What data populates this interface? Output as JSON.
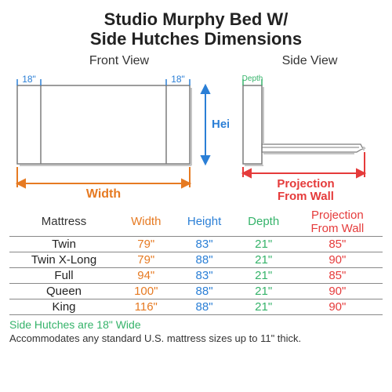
{
  "title_line1": "Studio Murphy Bed W/",
  "title_line2": "Side Hutches Dimensions",
  "front_view_label": "Front View",
  "side_view_label": "Side View",
  "colors": {
    "width": "#e67a22",
    "height": "#2b7fd6",
    "depth": "#35b36a",
    "proj": "#e53b3b",
    "schematic_line": "#7c7c7c",
    "schematic_shadow": "#c6c6c6",
    "text": "#222222",
    "tick": "#2b7fd6"
  },
  "front_labels": {
    "hutch_left": "18\"",
    "hutch_right": "18\"",
    "height": "Height",
    "width": "Width"
  },
  "side_labels": {
    "depth": "Depth",
    "proj_line1": "Projection",
    "proj_line2": "From Wall"
  },
  "table": {
    "headers": {
      "mattress": "Mattress",
      "width": "Width",
      "height": "Height",
      "depth": "Depth",
      "proj_line1": "Projection",
      "proj_line2": "From Wall"
    },
    "rows": [
      {
        "m": "Twin",
        "w": "79\"",
        "h": "83\"",
        "d": "21\"",
        "p": "85\""
      },
      {
        "m": "Twin X-Long",
        "w": "79\"",
        "h": "88\"",
        "d": "21\"",
        "p": "90\""
      },
      {
        "m": "Full",
        "w": "94\"",
        "h": "83\"",
        "d": "21\"",
        "p": "85\""
      },
      {
        "m": "Queen",
        "w": "100\"",
        "h": "88\"",
        "d": "21\"",
        "p": "90\""
      },
      {
        "m": "King",
        "w": "116\"",
        "h": "88\"",
        "d": "21\"",
        "p": "90\""
      }
    ]
  },
  "footnote1": "Side Hutches are 18\" Wide",
  "footnote2": "Accommodates any standard U.S. mattress sizes up to 11\" thick."
}
